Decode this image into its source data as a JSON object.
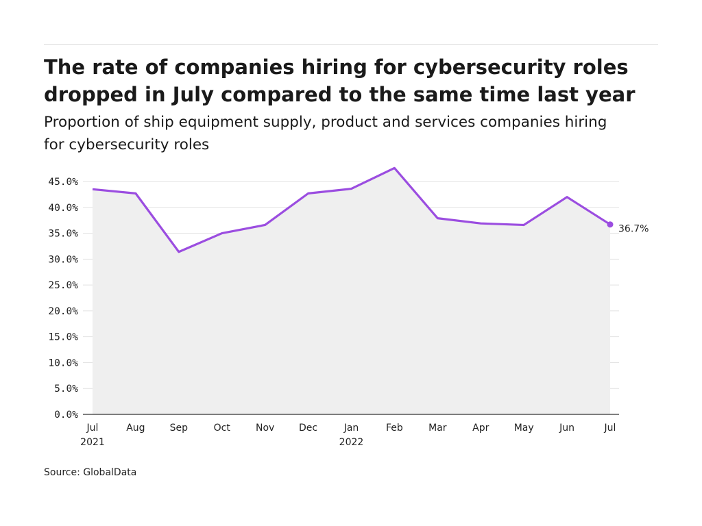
{
  "header": {
    "title_line1": "The rate of companies hiring for cybersecurity roles",
    "title_line2": "dropped in July compared to the same time last year",
    "subtitle_line1": "Proportion of ship equipment supply, product and services companies hiring",
    "subtitle_line2": "for cybersecurity roles"
  },
  "footer": {
    "source": "Source: GlobalData"
  },
  "chart_data": {
    "type": "area",
    "title": "The rate of companies hiring for cybersecurity roles dropped in July compared to the same time last year",
    "subtitle": "Proportion of ship equipment supply, product and services companies hiring for cybersecurity roles",
    "categories": [
      "Jul",
      "Aug",
      "Sep",
      "Oct",
      "Nov",
      "Dec",
      "Jan",
      "Feb",
      "Mar",
      "Apr",
      "May",
      "Jun",
      "Jul"
    ],
    "category_sublabels": [
      "2021",
      "",
      "",
      "",
      "",
      "",
      "2022",
      "",
      "",
      "",
      "",
      "",
      ""
    ],
    "values": [
      43.5,
      42.7,
      31.4,
      35.0,
      36.6,
      42.7,
      43.6,
      47.6,
      37.9,
      36.9,
      36.6,
      42.0,
      36.7
    ],
    "ylim": [
      0,
      45
    ],
    "yticks": [
      "0.0%",
      "5.0%",
      "10.0%",
      "15.0%",
      "20.0%",
      "25.0%",
      "30.0%",
      "35.0%",
      "40.0%",
      "45.0%"
    ],
    "end_label": "36.7%",
    "grid": true,
    "xlabel": "",
    "ylabel": "",
    "colors": {
      "line": "#9b4de0",
      "fill": "#efefef",
      "grid": "#e2e2e2",
      "axis": "#333333"
    }
  }
}
